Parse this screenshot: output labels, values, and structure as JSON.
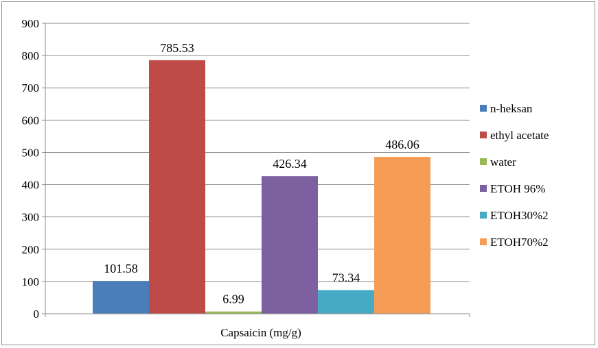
{
  "chart_data": {
    "type": "bar",
    "categories": [
      "Capsaicin (mg/g)"
    ],
    "series": [
      {
        "name": "n-heksan",
        "values": [
          101.58
        ],
        "color": "#4a7ebb"
      },
      {
        "name": "ethyl acetate",
        "values": [
          785.53
        ],
        "color": "#be4b48"
      },
      {
        "name": "water",
        "values": [
          6.99
        ],
        "color": "#98b954"
      },
      {
        "name": "ETOH 96%",
        "values": [
          426.34
        ],
        "color": "#7d60a0"
      },
      {
        "name": "ETOH30%2",
        "values": [
          73.34
        ],
        "color": "#46aac5"
      },
      {
        "name": "ETOH70%2",
        "values": [
          486.06
        ],
        "color": "#f59d56"
      }
    ],
    "data_labels": [
      "101.58",
      "785.53",
      "6.99",
      "426.34",
      "73.34",
      "486.06"
    ],
    "y_ticks": [
      "0",
      "100",
      "200",
      "300",
      "400",
      "500",
      "600",
      "700",
      "800",
      "900"
    ],
    "ylim": [
      0,
      900
    ],
    "xlabel": "Capsaicin (mg/g)",
    "ylabel": "",
    "title": "",
    "grid": true,
    "legend_position": "right"
  }
}
